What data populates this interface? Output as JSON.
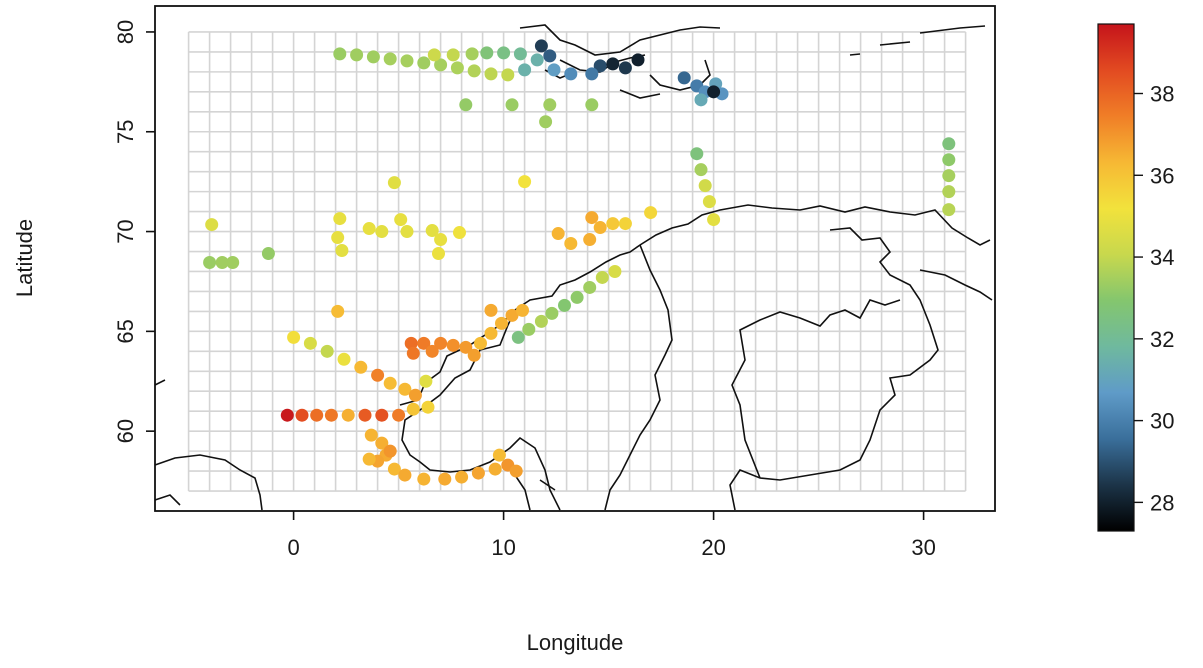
{
  "axes": {
    "xlabel": "Longitude",
    "ylabel": "Latitude",
    "xticks": [
      0,
      10,
      20,
      30
    ],
    "yticks": [
      60,
      65,
      70,
      75,
      80
    ],
    "xlim": [
      -6.6,
      33.4
    ],
    "ylim": [
      56.0,
      81.3
    ]
  },
  "colorbar": {
    "min": 27.3,
    "max": 39.7,
    "ticks": [
      28,
      30,
      32,
      34,
      36,
      38
    ],
    "stops": [
      "#000000",
      "#1c3448",
      "#3a6f9b",
      "#5f9bc8",
      "#6fb99e",
      "#84c66e",
      "#c8d84d",
      "#f2e23c",
      "#f6b834",
      "#f07e27",
      "#e24a21",
      "#c5141b"
    ]
  },
  "chart_data": {
    "type": "scatter",
    "title": "",
    "xlabel": "Longitude",
    "ylabel": "Latitude",
    "xlim": [
      -6.6,
      33.4
    ],
    "ylim": [
      56.0,
      81.3
    ],
    "color_variable_range": [
      27.3,
      39.7
    ],
    "grid": {
      "lon_range": [
        -5,
        32
      ],
      "lat_range": [
        57,
        80
      ],
      "step": 1
    },
    "points": [
      [
        2.2,
        78.9,
        33.3
      ],
      [
        3,
        78.85,
        33.4
      ],
      [
        3.8,
        78.75,
        33.4
      ],
      [
        4.6,
        78.65,
        33.5
      ],
      [
        5.4,
        78.55,
        33.5
      ],
      [
        6.2,
        78.45,
        33.4
      ],
      [
        7,
        78.35,
        33.5
      ],
      [
        7.8,
        78.2,
        33.6
      ],
      [
        8.6,
        78.05,
        33.7
      ],
      [
        9.4,
        77.9,
        33.9
      ],
      [
        10.2,
        77.85,
        34.0
      ],
      [
        6.7,
        78.85,
        34.2
      ],
      [
        7.6,
        78.85,
        34.0
      ],
      [
        8.5,
        78.9,
        33.5
      ],
      [
        9.2,
        78.95,
        32.7
      ],
      [
        10,
        78.95,
        32.4
      ],
      [
        10.8,
        78.9,
        32.0
      ],
      [
        11.6,
        78.6,
        31.5
      ],
      [
        12.4,
        78.1,
        30.8
      ],
      [
        13.2,
        77.9,
        30.3
      ],
      [
        11,
        78.1,
        31.5
      ],
      [
        11.8,
        79.3,
        28.6
      ],
      [
        12.2,
        78.8,
        29.2
      ],
      [
        14.6,
        78.3,
        28.9
      ],
      [
        15.2,
        78.4,
        28.1
      ],
      [
        15.8,
        78.2,
        28.5
      ],
      [
        16.4,
        78.6,
        28.0
      ],
      [
        14.2,
        77.9,
        29.8
      ],
      [
        18.6,
        77.7,
        29.4
      ],
      [
        19.2,
        77.3,
        29.9
      ],
      [
        19.6,
        77.0,
        30.4
      ],
      [
        19.4,
        76.6,
        31.2
      ],
      [
        20.1,
        77.4,
        31.0
      ],
      [
        20.4,
        76.9,
        30.5
      ],
      [
        20,
        77.0,
        28.0
      ],
      [
        8.2,
        76.35,
        33.2
      ],
      [
        10.4,
        76.35,
        33.3
      ],
      [
        12.2,
        76.35,
        33.4
      ],
      [
        14.2,
        76.35,
        33.3
      ],
      [
        12,
        75.5,
        33.4
      ],
      [
        19.2,
        73.9,
        32.6
      ],
      [
        19.4,
        73.1,
        33.5
      ],
      [
        19.6,
        72.3,
        34.3
      ],
      [
        19.8,
        71.5,
        34.6
      ],
      [
        20,
        70.6,
        34.8
      ],
      [
        31.2,
        74.4,
        32.6
      ],
      [
        31.2,
        73.6,
        33.1
      ],
      [
        31.2,
        72.8,
        33.5
      ],
      [
        31.2,
        72.0,
        33.7
      ],
      [
        31.2,
        71.1,
        33.8
      ],
      [
        -3.9,
        70.35,
        34.6
      ],
      [
        -4,
        68.45,
        33.3
      ],
      [
        -3.4,
        68.45,
        33.4
      ],
      [
        -2.9,
        68.45,
        33.4
      ],
      [
        -1.2,
        68.9,
        33.2
      ],
      [
        2.2,
        70.65,
        34.9
      ],
      [
        2.1,
        69.7,
        34.9
      ],
      [
        2.3,
        69.05,
        34.8
      ],
      [
        3.6,
        70.15,
        34.9
      ],
      [
        4.2,
        70.0,
        34.8
      ],
      [
        5.1,
        70.6,
        34.9
      ],
      [
        5.4,
        70.0,
        34.8
      ],
      [
        6.6,
        70.05,
        34.8
      ],
      [
        7,
        69.6,
        34.9
      ],
      [
        6.9,
        68.9,
        35.0
      ],
      [
        7.9,
        69.95,
        35.1
      ],
      [
        11,
        72.5,
        35.2
      ],
      [
        4.8,
        72.45,
        34.7
      ],
      [
        12.6,
        69.9,
        36.4
      ],
      [
        13.2,
        69.4,
        36.3
      ],
      [
        14.1,
        69.6,
        36.5
      ],
      [
        14.6,
        70.2,
        36.4
      ],
      [
        15.2,
        70.4,
        35.9
      ],
      [
        15.8,
        70.4,
        35.6
      ],
      [
        17,
        70.95,
        35.5
      ],
      [
        14.2,
        70.7,
        36.6
      ],
      [
        11.2,
        65.1,
        33.3
      ],
      [
        11.8,
        65.5,
        33.7
      ],
      [
        12.3,
        65.9,
        33.3
      ],
      [
        12.9,
        66.3,
        32.9
      ],
      [
        13.5,
        66.7,
        33.1
      ],
      [
        14.1,
        67.2,
        33.4
      ],
      [
        14.7,
        67.7,
        34.0
      ],
      [
        15.3,
        68.0,
        34.5
      ],
      [
        10.7,
        64.7,
        32.5
      ],
      [
        8.9,
        64.4,
        36.2
      ],
      [
        9.4,
        64.9,
        36.3
      ],
      [
        9.9,
        65.4,
        36.4
      ],
      [
        10.4,
        65.8,
        36.6
      ],
      [
        10.9,
        66.05,
        36.4
      ],
      [
        9.4,
        66.05,
        36.6
      ],
      [
        5.6,
        64.4,
        37.8
      ],
      [
        6.2,
        64.4,
        37.5
      ],
      [
        7.0,
        64.4,
        37.3
      ],
      [
        7.6,
        64.3,
        37.1
      ],
      [
        8.2,
        64.2,
        36.9
      ],
      [
        5.7,
        63.9,
        37.6
      ],
      [
        6.6,
        64.0,
        37.3
      ],
      [
        8.6,
        63.8,
        36.8
      ],
      [
        0,
        64.7,
        35.3
      ],
      [
        0.8,
        64.4,
        34.5
      ],
      [
        1.6,
        64.0,
        34.0
      ],
      [
        2.4,
        63.6,
        35.0
      ],
      [
        3.2,
        63.2,
        36.3
      ],
      [
        4.0,
        62.8,
        37.4
      ],
      [
        4.6,
        62.4,
        36.2
      ],
      [
        5.3,
        62.1,
        36.3
      ],
      [
        5.8,
        61.8,
        36.8
      ],
      [
        6.3,
        62.5,
        34.7
      ],
      [
        2.1,
        66.0,
        36.2
      ],
      [
        -0.3,
        60.8,
        39.6
      ],
      [
        0.4,
        60.8,
        38.5
      ],
      [
        1.1,
        60.8,
        37.8
      ],
      [
        1.8,
        60.8,
        37.6
      ],
      [
        2.6,
        60.8,
        36.5
      ],
      [
        3.4,
        60.8,
        38.2
      ],
      [
        4.2,
        60.8,
        38.4
      ],
      [
        5.0,
        60.8,
        37.5
      ],
      [
        5.7,
        61.1,
        36.0
      ],
      [
        6.4,
        61.2,
        35.6
      ],
      [
        3.7,
        59.8,
        36.4
      ],
      [
        4.2,
        59.4,
        36.5
      ],
      [
        4.4,
        58.8,
        36.6
      ],
      [
        4.0,
        58.5,
        36.7
      ],
      [
        4.8,
        58.1,
        36.3
      ],
      [
        5.3,
        57.8,
        36.6
      ],
      [
        6.2,
        57.6,
        36.4
      ],
      [
        7.2,
        57.6,
        36.6
      ],
      [
        8.0,
        57.7,
        36.5
      ],
      [
        8.8,
        57.9,
        36.7
      ],
      [
        9.6,
        58.1,
        36.5
      ],
      [
        10.2,
        58.3,
        37.0
      ],
      [
        10.6,
        58.0,
        36.8
      ],
      [
        9.8,
        58.8,
        36.2
      ],
      [
        4.6,
        59.0,
        37.0
      ],
      [
        3.6,
        58.6,
        36.3
      ]
    ]
  }
}
